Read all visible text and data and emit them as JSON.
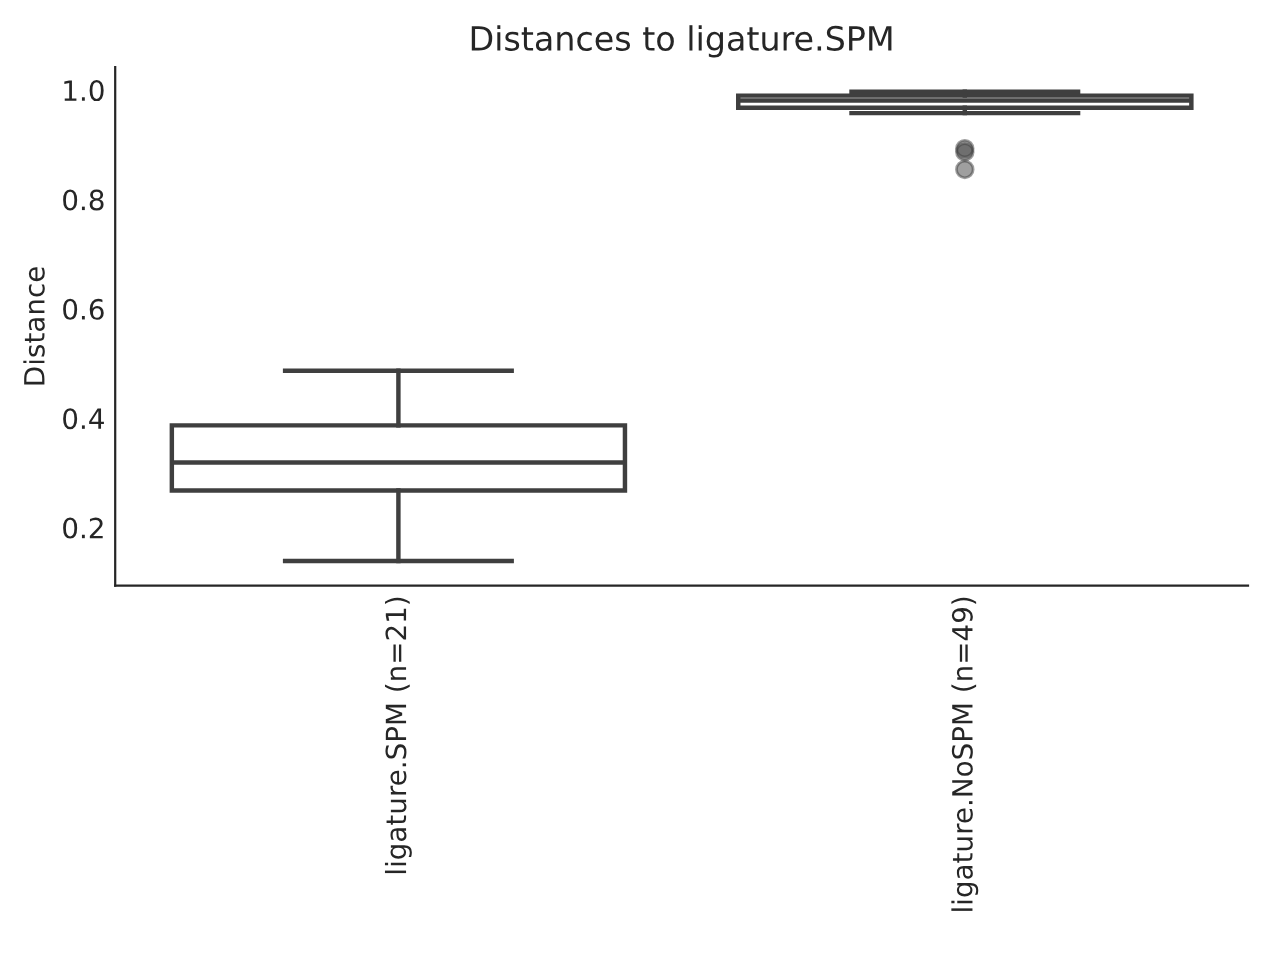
{
  "chart_data": {
    "type": "box",
    "title": "Distances to ligature.SPM",
    "ylabel": "Distance",
    "categories": [
      "ligature.SPM (n=21)",
      "ligature.NoSPM (n=49)"
    ],
    "boxes": [
      {
        "low": 0.139,
        "q1": 0.268,
        "median": 0.319,
        "q3": 0.387,
        "high": 0.487
      },
      {
        "low": 0.958,
        "q1": 0.968,
        "median": 0.981,
        "q3": 0.99,
        "high": 0.997,
        "outliers": [
          0.893,
          0.887,
          0.855
        ]
      }
    ],
    "color": "#3f3f3f",
    "ylim": [
      0.094,
      1.042
    ],
    "yticks": [
      0.2,
      0.4,
      0.6,
      0.8,
      {
        "value": 1,
        "label": "1.0"
      }
    ],
    "grid": false,
    "legend": false
  }
}
